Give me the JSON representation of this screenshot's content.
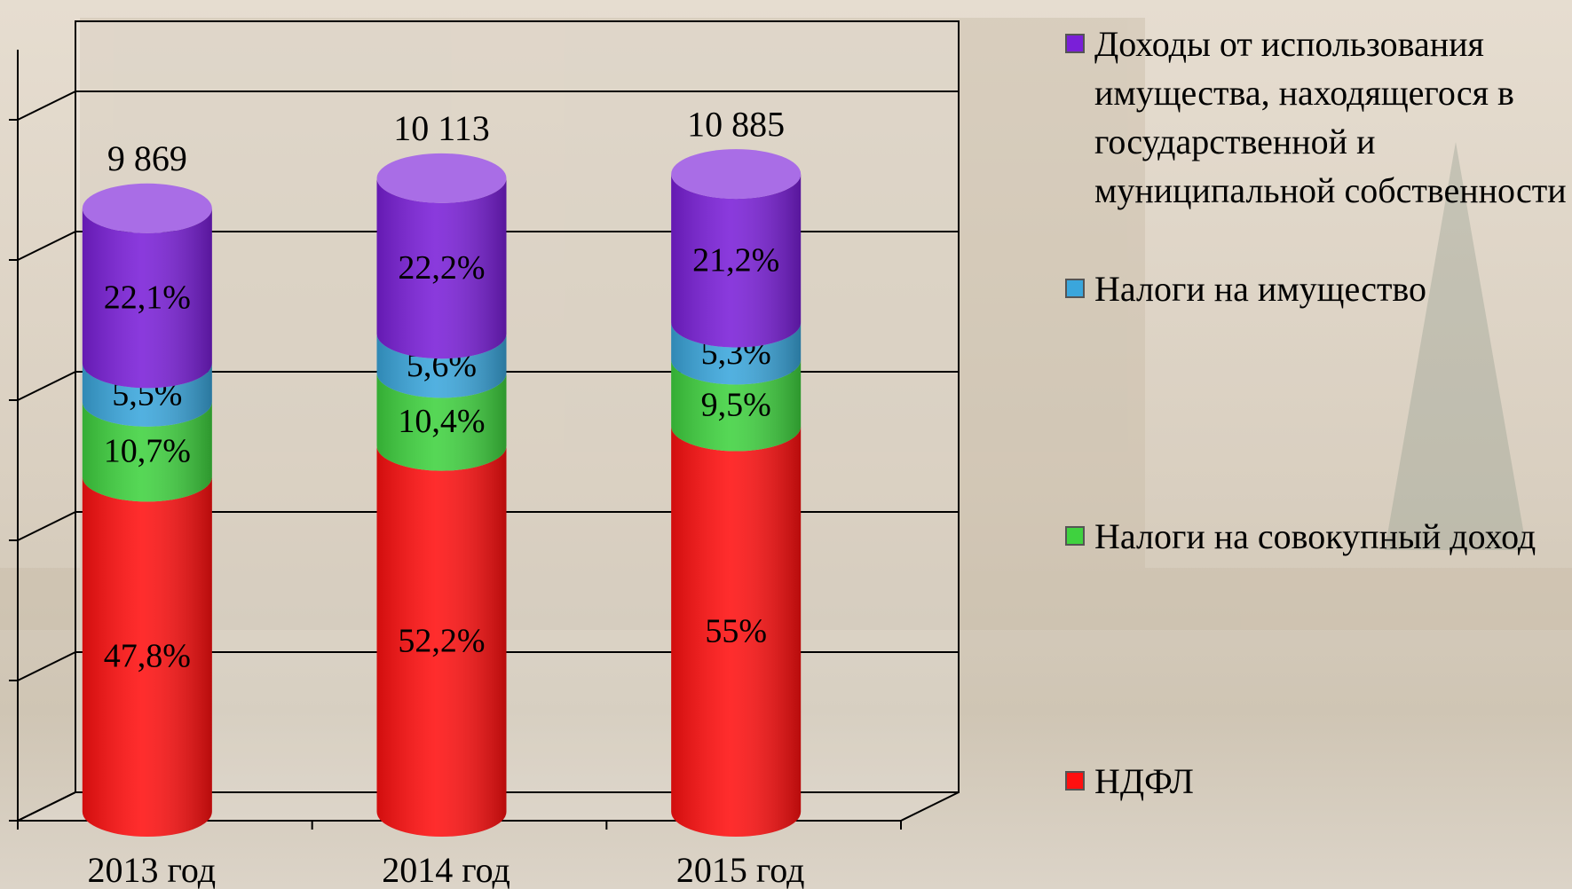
{
  "chart_data": {
    "type": "cylinder_stacked",
    "categories": [
      "2013 год",
      "2014 год",
      "2015 год"
    ],
    "series": [
      {
        "name": "НДФЛ",
        "color": "#ff1010",
        "values": [
          47.8,
          52.2,
          55
        ],
        "value_labels": [
          "47,8%",
          "52,2%",
          "55%"
        ]
      },
      {
        "name": "Налоги на совокупный доход",
        "color": "#3fd23f",
        "values": [
          10.7,
          10.4,
          9.5
        ],
        "value_labels": [
          "10,7%",
          "10,4%",
          "9,5%"
        ]
      },
      {
        "name": "Налоги на имущество",
        "color": "#3aa6dc",
        "values": [
          5.5,
          5.6,
          5.3
        ],
        "value_labels": [
          "5,5%",
          "5,6%",
          "5,3%"
        ]
      },
      {
        "name": "Доходы от использования имущества, находящегося в государственной и муниципальной собственности",
        "color": "#7a1fd8",
        "values": [
          22.1,
          22.2,
          21.2
        ],
        "value_labels": [
          "22,1%",
          "22,2%",
          "21,2%"
        ]
      }
    ],
    "totals": {
      "values": [
        9869,
        10113,
        10885
      ],
      "value_labels": [
        "9 869",
        "10 113",
        "10 885"
      ]
    },
    "ylim": [
      0,
      110
    ],
    "yticks": [
      0,
      20,
      40,
      60,
      80,
      100
    ],
    "grid": true
  }
}
